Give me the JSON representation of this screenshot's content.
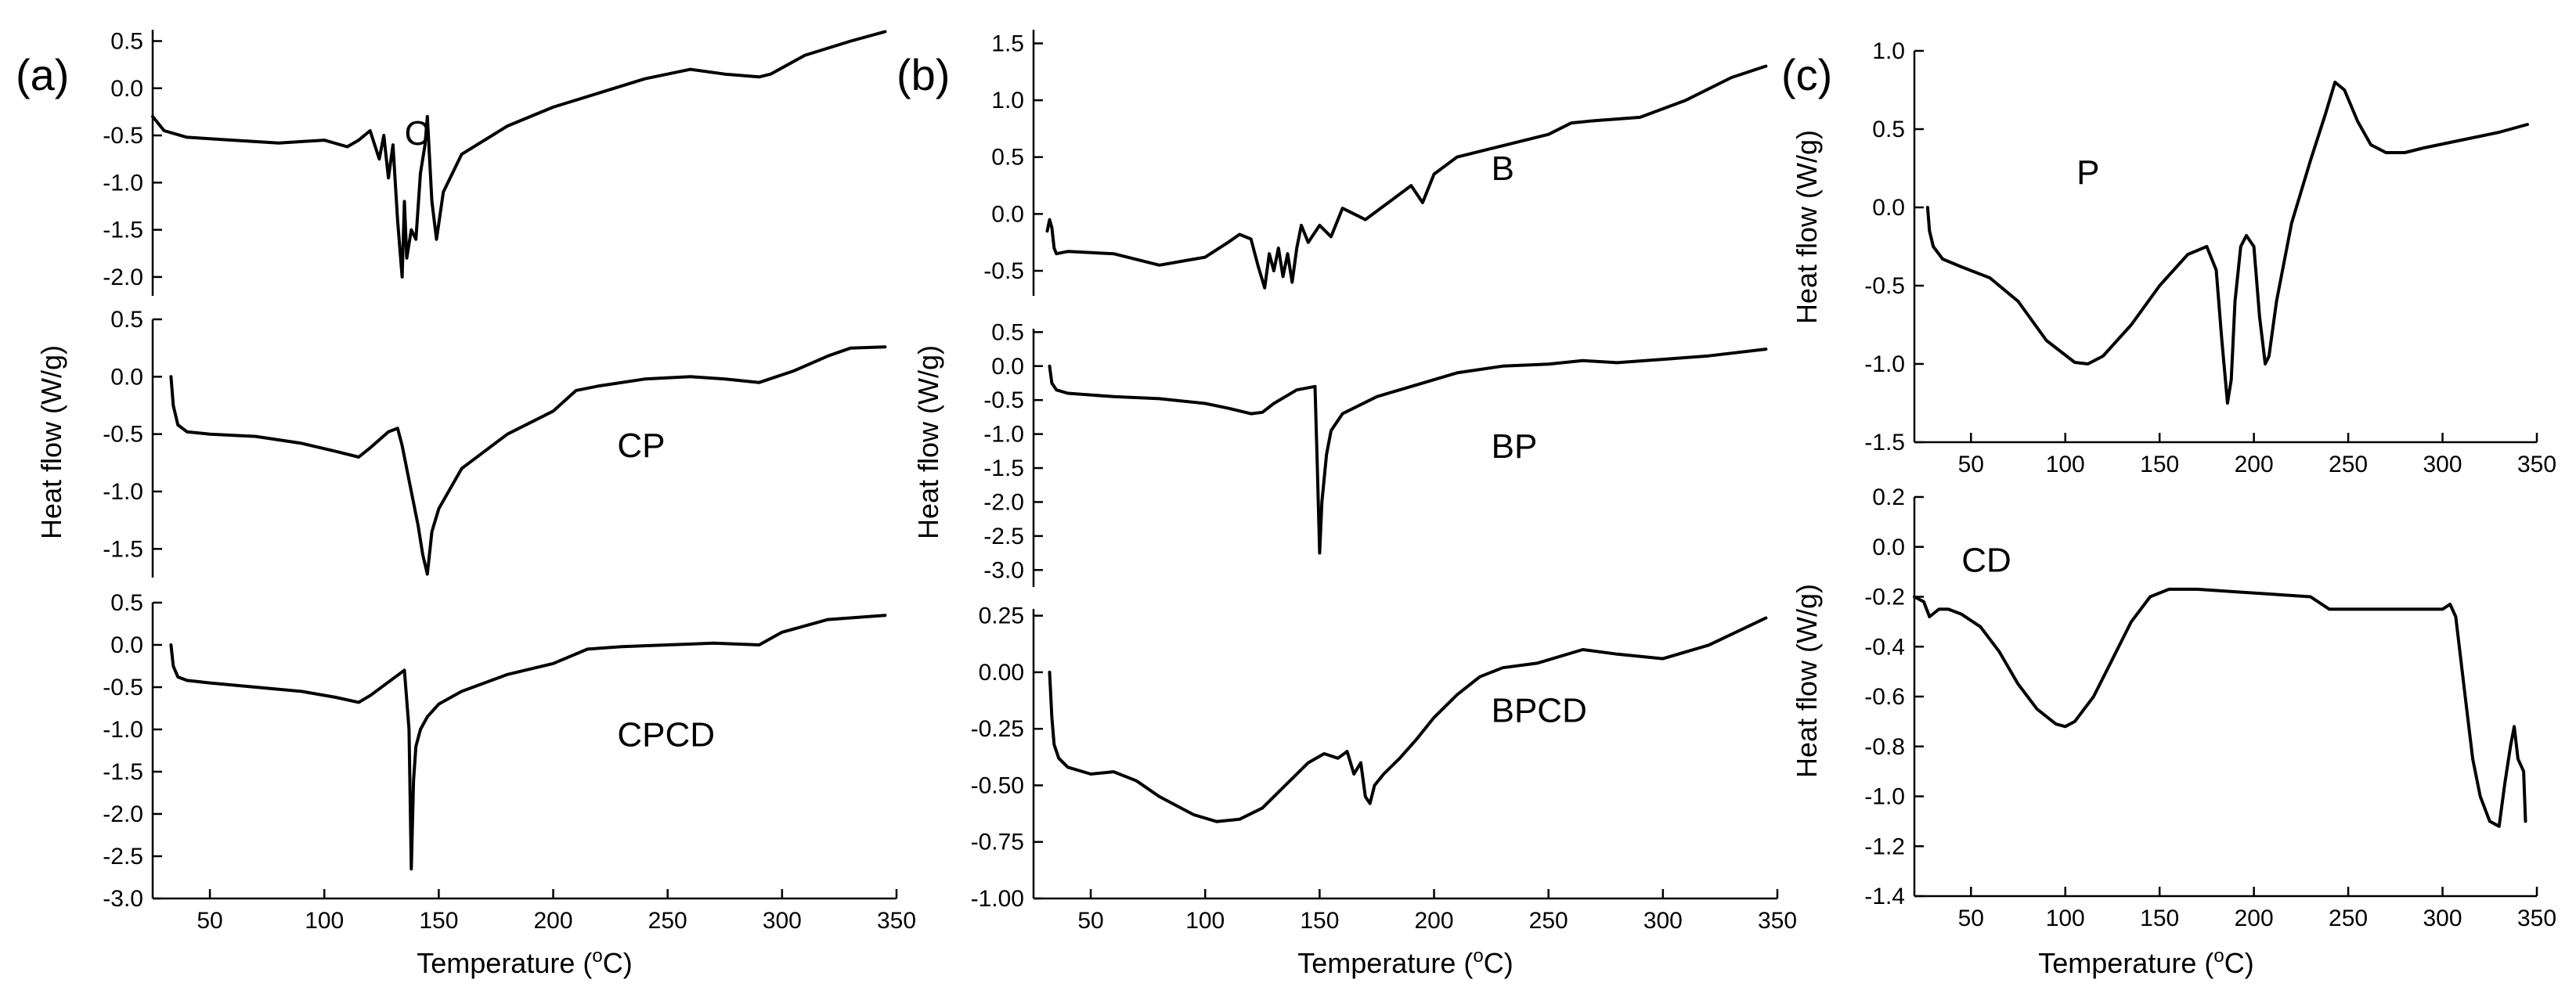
{
  "figure": {
    "x_label_prefix": "Temperature (",
    "x_label_unit_sup": "o",
    "x_label_suffix": "C)",
    "y_label": "Heat flow (W/g)"
  },
  "chart_data": [
    {
      "panel": "(a)",
      "type": "line",
      "xlim": [
        25,
        350
      ],
      "x_ticks": [
        50,
        100,
        150,
        200,
        250,
        300,
        350
      ],
      "subplots": [
        {
          "label": "C",
          "ylim": [
            -2.2,
            0.62
          ],
          "y_ticks": [
            0.5,
            0.0,
            -0.5,
            -1.0,
            -1.5,
            -2.0
          ],
          "y_tick_labels": [
            "0.5",
            "0.0",
            "-0.5",
            "-1.0",
            "-1.5",
            "-2.0"
          ],
          "label_pos": [
            135,
            -0.6
          ],
          "series": [
            {
              "name": "C",
              "x": [
                25,
                30,
                40,
                60,
                80,
                100,
                110,
                115,
                120,
                124,
                126,
                128,
                130,
                132,
                134,
                135,
                136,
                138,
                140,
                142,
                144,
                145,
                147,
                149,
                152,
                160,
                180,
                200,
                220,
                240,
                260,
                275,
                290,
                295,
                310,
                330,
                345
              ],
              "y": [
                -0.3,
                -0.45,
                -0.52,
                -0.55,
                -0.58,
                -0.55,
                -0.62,
                -0.55,
                -0.45,
                -0.75,
                -0.5,
                -0.95,
                -0.6,
                -1.4,
                -2.0,
                -1.2,
                -1.8,
                -1.5,
                -1.6,
                -0.9,
                -0.6,
                -0.3,
                -1.2,
                -1.6,
                -1.1,
                -0.7,
                -0.4,
                -0.2,
                -0.05,
                0.1,
                0.2,
                0.15,
                0.12,
                0.15,
                0.35,
                0.5,
                0.6
              ]
            }
          ]
        },
        {
          "label": "CP",
          "ylim": [
            -1.75,
            0.5
          ],
          "y_ticks": [
            0.5,
            0.0,
            -0.5,
            -1.0,
            -1.5
          ],
          "y_tick_labels": [
            "0.5",
            "0.0",
            "-0.5",
            "-1.0",
            "-1.5"
          ],
          "label_pos": [
            228,
            -0.7
          ],
          "series": [
            {
              "name": "CP",
              "x": [
                33,
                34,
                36,
                40,
                50,
                70,
                90,
                105,
                115,
                120,
                128,
                132,
                134,
                138,
                141,
                143,
                145,
                147,
                150,
                160,
                180,
                200,
                210,
                220,
                240,
                260,
                275,
                290,
                305,
                320,
                330,
                345
              ],
              "y": [
                0.0,
                -0.25,
                -0.42,
                -0.48,
                -0.5,
                -0.52,
                -0.58,
                -0.65,
                -0.7,
                -0.62,
                -0.48,
                -0.45,
                -0.6,
                -1.0,
                -1.3,
                -1.55,
                -1.72,
                -1.35,
                -1.15,
                -0.8,
                -0.5,
                -0.3,
                -0.12,
                -0.08,
                -0.02,
                0.0,
                -0.02,
                -0.05,
                0.05,
                0.18,
                0.25,
                0.26
              ]
            }
          ]
        },
        {
          "label": "CPCD",
          "ylim": [
            -3.0,
            0.5
          ],
          "y_ticks": [
            0.5,
            0.0,
            -0.5,
            -1.0,
            -1.5,
            -2.0,
            -2.5,
            -3.0
          ],
          "y_tick_labels": [
            "0.5",
            "0.0",
            "-0.5",
            "-1.0",
            "-1.5",
            "-2.0",
            "-2.5",
            "-3.0"
          ],
          "label_pos": [
            228,
            -1.2
          ],
          "series": [
            {
              "name": "CPCD",
              "x": [
                33,
                34,
                36,
                40,
                50,
                70,
                90,
                105,
                115,
                120,
                130,
                135,
                137,
                138,
                139,
                140,
                142,
                145,
                150,
                160,
                180,
                200,
                215,
                230,
                250,
                270,
                290,
                300,
                320,
                345
              ],
              "y": [
                0.0,
                -0.25,
                -0.38,
                -0.42,
                -0.45,
                -0.5,
                -0.55,
                -0.62,
                -0.68,
                -0.6,
                -0.4,
                -0.3,
                -1.0,
                -2.65,
                -1.6,
                -1.2,
                -1.0,
                -0.85,
                -0.7,
                -0.55,
                -0.35,
                -0.22,
                -0.05,
                -0.02,
                0.0,
                0.02,
                0.0,
                0.15,
                0.3,
                0.35
              ]
            }
          ]
        }
      ]
    },
    {
      "panel": "(b)",
      "type": "line",
      "xlim": [
        25,
        350
      ],
      "x_ticks": [
        50,
        100,
        150,
        200,
        250,
        300,
        350
      ],
      "subplots": [
        {
          "label": "B",
          "ylim": [
            -0.72,
            1.62
          ],
          "y_ticks": [
            1.5,
            1.0,
            0.5,
            0.0,
            -0.5
          ],
          "y_tick_labels": [
            "1.5",
            "1.0",
            "0.5",
            "0.0",
            "-0.5"
          ],
          "label_pos": [
            225,
            0.3
          ],
          "series": [
            {
              "name": "B",
              "x": [
                31,
                32,
                33,
                34,
                35,
                40,
                60,
                80,
                100,
                110,
                115,
                120,
                123,
                126,
                128,
                130,
                132,
                134,
                136,
                138,
                140,
                142,
                145,
                150,
                155,
                160,
                170,
                180,
                190,
                195,
                200,
                210,
                230,
                250,
                260,
                270,
                290,
                310,
                330,
                345
              ],
              "y": [
                -0.15,
                -0.05,
                -0.12,
                -0.3,
                -0.35,
                -0.33,
                -0.35,
                -0.45,
                -0.38,
                -0.25,
                -0.18,
                -0.22,
                -0.45,
                -0.65,
                -0.35,
                -0.5,
                -0.3,
                -0.55,
                -0.35,
                -0.6,
                -0.3,
                -0.1,
                -0.25,
                -0.1,
                -0.2,
                0.05,
                -0.05,
                0.1,
                0.25,
                0.1,
                0.35,
                0.5,
                0.6,
                0.7,
                0.8,
                0.82,
                0.85,
                1.0,
                1.2,
                1.3
              ]
            }
          ]
        },
        {
          "label": "BP",
          "ylim": [
            -3.25,
            0.55
          ],
          "y_ticks": [
            0.5,
            0.0,
            -0.5,
            -1.0,
            -1.5,
            -2.0,
            -2.5,
            -3.0
          ],
          "y_tick_labels": [
            "0.5",
            "0.0",
            "-0.5",
            "-1.0",
            "-1.5",
            "-2.0",
            "-2.5",
            "-3.0"
          ],
          "label_pos": [
            225,
            -1.35
          ],
          "series": [
            {
              "name": "BP",
              "x": [
                32,
                33,
                35,
                40,
                60,
                80,
                100,
                110,
                120,
                125,
                130,
                140,
                148,
                149,
                150,
                151,
                153,
                155,
                160,
                175,
                190,
                210,
                230,
                250,
                265,
                280,
                300,
                320,
                345
              ],
              "y": [
                0.0,
                -0.25,
                -0.35,
                -0.4,
                -0.45,
                -0.48,
                -0.55,
                -0.62,
                -0.7,
                -0.68,
                -0.55,
                -0.35,
                -0.3,
                -1.5,
                -2.75,
                -2.0,
                -1.3,
                -0.95,
                -0.7,
                -0.45,
                -0.3,
                -0.1,
                0.0,
                0.03,
                0.08,
                0.05,
                0.1,
                0.15,
                0.25
              ]
            }
          ]
        },
        {
          "label": "BPCD",
          "ylim": [
            -1.0,
            0.28
          ],
          "y_ticks": [
            0.25,
            0.0,
            -0.25,
            -0.5,
            -0.75,
            -1.0
          ],
          "y_tick_labels": [
            "0.25",
            "0.00",
            "-0.25",
            "-0.50",
            "-0.75",
            "-1.00"
          ],
          "label_pos": [
            225,
            -0.22
          ],
          "series": [
            {
              "name": "BPCD",
              "x": [
                32,
                33,
                34,
                36,
                40,
                50,
                60,
                70,
                80,
                95,
                105,
                115,
                125,
                135,
                145,
                152,
                158,
                162,
                165,
                168,
                170,
                172,
                174,
                178,
                185,
                192,
                200,
                210,
                220,
                230,
                245,
                265,
                280,
                300,
                320,
                345
              ],
              "y": [
                0.0,
                -0.2,
                -0.32,
                -0.38,
                -0.42,
                -0.45,
                -0.44,
                -0.48,
                -0.55,
                -0.63,
                -0.66,
                -0.65,
                -0.6,
                -0.5,
                -0.4,
                -0.36,
                -0.38,
                -0.35,
                -0.45,
                -0.4,
                -0.55,
                -0.58,
                -0.5,
                -0.45,
                -0.38,
                -0.3,
                -0.2,
                -0.1,
                -0.02,
                0.02,
                0.04,
                0.1,
                0.08,
                0.06,
                0.12,
                0.24
              ]
            }
          ]
        }
      ]
    },
    {
      "panel": "(c)",
      "type": "line",
      "xlim": [
        20,
        350
      ],
      "x_ticks": [
        50,
        100,
        150,
        200,
        250,
        300,
        350
      ],
      "subplots": [
        {
          "label": "P",
          "ylim": [
            -1.5,
            1.0
          ],
          "y_ticks": [
            1.0,
            0.5,
            0.0,
            -0.5,
            -1.0,
            -1.5
          ],
          "y_tick_labels": [
            "1.0",
            "0.5",
            "0.0",
            "-0.5",
            "-1.0",
            "-1.5"
          ],
          "label_pos": [
            106,
            0.15
          ],
          "series": [
            {
              "name": "P",
              "x": [
                27,
                28,
                30,
                35,
                45,
                60,
                75,
                90,
                105,
                112,
                120,
                135,
                150,
                165,
                175,
                180,
                183,
                186,
                188,
                190,
                193,
                196,
                200,
                203,
                206,
                208,
                212,
                220,
                230,
                238,
                243,
                248,
                255,
                262,
                270,
                280,
                290,
                310,
                330,
                345
              ],
              "y": [
                0.0,
                -0.15,
                -0.25,
                -0.33,
                -0.38,
                -0.45,
                -0.6,
                -0.85,
                -0.99,
                -1.0,
                -0.95,
                -0.75,
                -0.5,
                -0.3,
                -0.25,
                -0.4,
                -0.85,
                -1.25,
                -1.1,
                -0.6,
                -0.25,
                -0.18,
                -0.25,
                -0.7,
                -1.0,
                -0.95,
                -0.6,
                -0.1,
                0.3,
                0.6,
                0.8,
                0.75,
                0.55,
                0.4,
                0.35,
                0.35,
                0.38,
                0.43,
                0.48,
                0.53
              ]
            }
          ]
        },
        {
          "label": "CD",
          "ylim": [
            -1.4,
            0.2
          ],
          "y_ticks": [
            0.2,
            0.0,
            -0.2,
            -0.4,
            -0.6,
            -0.8,
            -1.0,
            -1.2,
            -1.4
          ],
          "y_tick_labels": [
            "0.2",
            "0.0",
            "-0.2",
            "-0.4",
            "-0.6",
            "-0.8",
            "-1.0",
            "-1.2",
            "-1.4"
          ],
          "label_pos": [
            45,
            -0.1
          ],
          "series": [
            {
              "name": "CD",
              "x": [
                20,
                25,
                28,
                33,
                38,
                45,
                55,
                65,
                75,
                85,
                95,
                100,
                105,
                115,
                125,
                135,
                145,
                155,
                170,
                190,
                210,
                230,
                240,
                250,
                270,
                290,
                300,
                304,
                307,
                312,
                316,
                320,
                325,
                330,
                333,
                336,
                338,
                340,
                343,
                344
              ],
              "y": [
                -0.2,
                -0.22,
                -0.28,
                -0.25,
                -0.25,
                -0.27,
                -0.32,
                -0.42,
                -0.55,
                -0.65,
                -0.71,
                -0.72,
                -0.7,
                -0.6,
                -0.45,
                -0.3,
                -0.2,
                -0.17,
                -0.17,
                -0.18,
                -0.19,
                -0.2,
                -0.25,
                -0.25,
                -0.25,
                -0.25,
                -0.25,
                -0.23,
                -0.28,
                -0.6,
                -0.85,
                -1.0,
                -1.1,
                -1.12,
                -0.95,
                -0.8,
                -0.72,
                -0.85,
                -0.9,
                -1.1
              ]
            }
          ]
        }
      ]
    }
  ]
}
